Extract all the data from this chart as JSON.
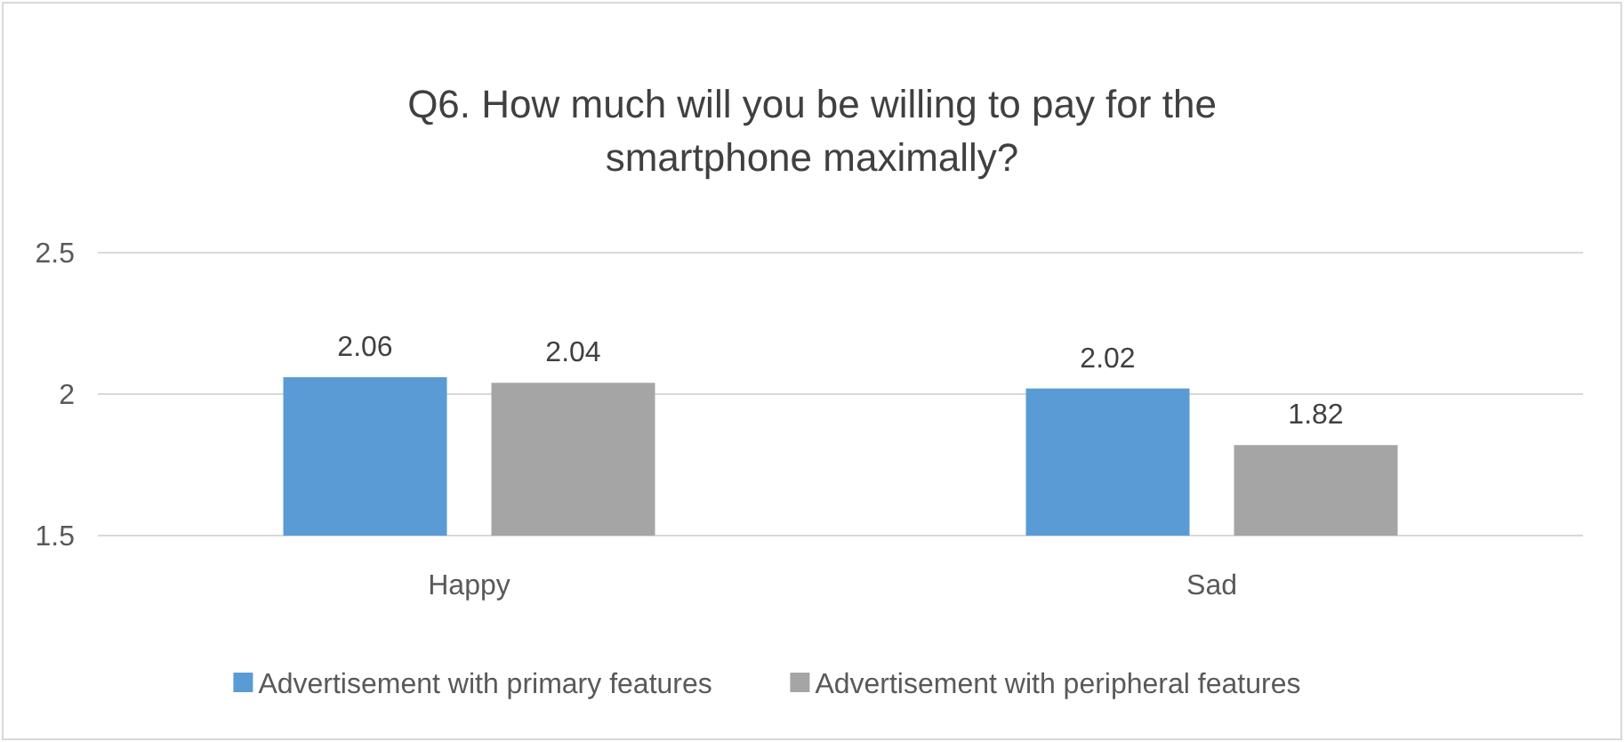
{
  "chart_data": {
    "type": "bar",
    "title": "Q6. How much will you be willing to pay for the smartphone maximally?",
    "categories": [
      "Happy",
      "Sad"
    ],
    "series": [
      {
        "name": "Advertisement with primary features",
        "color": "#5b9bd5",
        "values": [
          2.06,
          2.02
        ]
      },
      {
        "name": "Advertisement with peripheral features",
        "color": "#a5a5a5",
        "values": [
          2.04,
          1.82
        ]
      }
    ],
    "ylim": [
      1.5,
      2.5
    ],
    "yticks": [
      1.5,
      2,
      2.5
    ],
    "grid": "y",
    "data_labels": true,
    "legend": "bottom"
  }
}
